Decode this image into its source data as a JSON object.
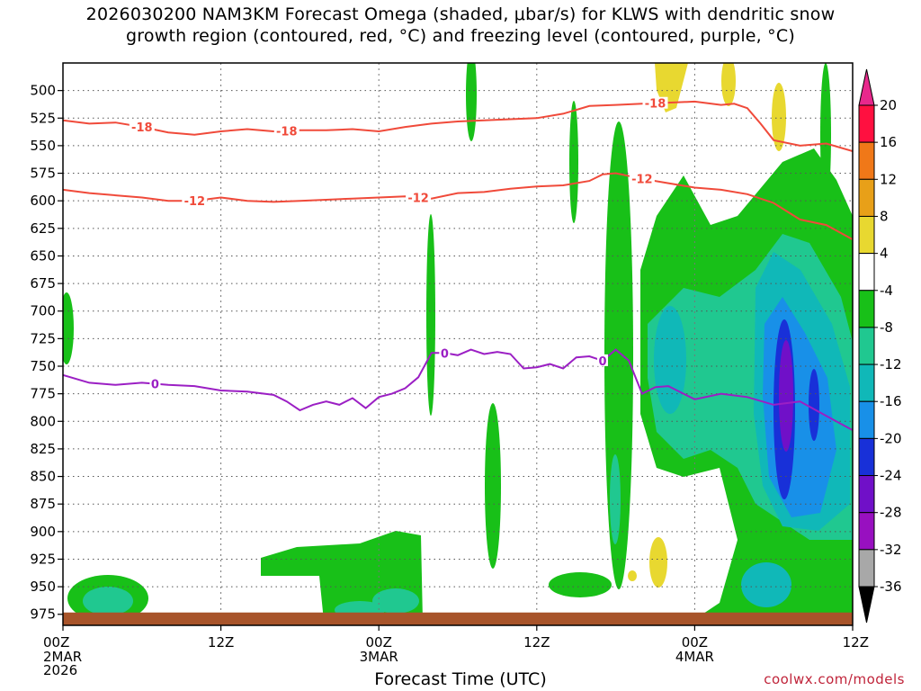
{
  "title_line1": "2026030200 NAM3KM Forecast Omega (shaded, μbar/s) for KLWS with dendritic snow",
  "title_line2": "growth region (contoured, red, °C) and freezing level (contoured, purple, °C)",
  "x_axis_title": "Forecast Time (UTC)",
  "credit": "coolwx.com/models",
  "colors": {
    "isotherm_red": "#f04a3a",
    "freezing_purple": "#9b1fc4",
    "ground": "#a8542a"
  },
  "chart_data": {
    "type": "heatmap",
    "x_ticks": [
      {
        "hour": 0,
        "label": "00Z",
        "sub": [
          "2MAR",
          "2026"
        ]
      },
      {
        "hour": 12,
        "label": "12Z",
        "sub": []
      },
      {
        "hour": 24,
        "label": "00Z",
        "sub": [
          "3MAR"
        ]
      },
      {
        "hour": 36,
        "label": "12Z",
        "sub": []
      },
      {
        "hour": 48,
        "label": "00Z",
        "sub": [
          "4MAR"
        ]
      },
      {
        "hour": 60,
        "label": "12Z",
        "sub": []
      }
    ],
    "xlim": [
      0,
      60
    ],
    "y_ticks": [
      500,
      525,
      550,
      575,
      600,
      625,
      650,
      675,
      700,
      725,
      750,
      775,
      800,
      825,
      850,
      875,
      900,
      925,
      950,
      975
    ],
    "ylim": [
      475,
      985
    ],
    "surface_pressure": 975,
    "colorbar": {
      "labels": [
        "20",
        "16",
        "12",
        "8",
        "4",
        "-4",
        "-8",
        "-12",
        "-16",
        "-20",
        "-24",
        "-28",
        "-32",
        "-36"
      ],
      "colors": [
        "#ff1040",
        "#f07818",
        "#e8a018",
        "#e8d830",
        "#ffffff",
        "#18c018",
        "#20c890",
        "#10b8b8",
        "#1890e8",
        "#1830d8",
        "#7010c8",
        "#9810c0",
        "#a8a8a8"
      ],
      "top_arrow": "#e8288c",
      "bottom_arrow": "#000000"
    },
    "series": [
      {
        "name": "-18",
        "color": "#f04a3a",
        "x": [
          0,
          2,
          4,
          6,
          8,
          10,
          12,
          14,
          16,
          18,
          20,
          22,
          24,
          26,
          28,
          30,
          32,
          34,
          36,
          38,
          40,
          42,
          44,
          46,
          48,
          50,
          51,
          52,
          53,
          54,
          56,
          58,
          60
        ],
        "y": [
          527,
          530,
          529,
          533,
          538,
          540,
          537,
          535,
          537,
          536,
          536,
          535,
          537,
          533,
          530,
          528,
          527,
          526,
          525,
          521,
          514,
          513,
          512,
          511,
          510,
          513,
          512,
          516,
          530,
          545,
          550,
          548,
          555
        ]
      },
      {
        "name": "-12",
        "color": "#f04a3a",
        "x": [
          0,
          2,
          4,
          6,
          8,
          10,
          12,
          14,
          16,
          18,
          20,
          22,
          24,
          26,
          28,
          30,
          32,
          34,
          36,
          38,
          40,
          41,
          42,
          44,
          46,
          48,
          50,
          52,
          54,
          56,
          58,
          60
        ],
        "y": [
          590,
          593,
          595,
          597,
          600,
          600,
          597,
          600,
          601,
          600,
          599,
          598,
          597,
          596,
          598,
          593,
          592,
          589,
          587,
          586,
          582,
          576,
          575,
          580,
          584,
          588,
          590,
          594,
          602,
          617,
          622,
          635
        ]
      },
      {
        "name": "0",
        "color": "#9b1fc4",
        "x": [
          0,
          2,
          4,
          6,
          8,
          10,
          12,
          14,
          16,
          17,
          18,
          19,
          20,
          21,
          22,
          23,
          24,
          25,
          26,
          27,
          28,
          29,
          30,
          31,
          32,
          33,
          34,
          35,
          36,
          37,
          38,
          39,
          40,
          41,
          42,
          43,
          44,
          45,
          46,
          48,
          50,
          52,
          54,
          56,
          58,
          60
        ],
        "y": [
          758,
          765,
          767,
          765,
          767,
          768,
          772,
          773,
          776,
          782,
          790,
          785,
          782,
          785,
          779,
          788,
          778,
          775,
          770,
          760,
          738,
          738,
          740,
          735,
          739,
          737,
          739,
          752,
          751,
          748,
          752,
          742,
          741,
          745,
          735,
          745,
          775,
          769,
          768,
          780,
          775,
          778,
          785,
          782,
          795,
          808
        ]
      }
    ]
  }
}
